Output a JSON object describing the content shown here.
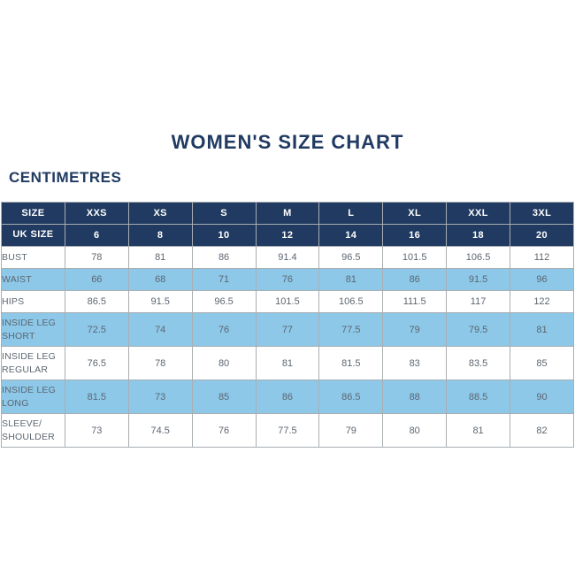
{
  "page": {
    "title": "WOMEN'S SIZE CHART",
    "unit_label": "CENTIMETRES"
  },
  "colors": {
    "navy": "#203a61",
    "light_blue": "#8dc8e9",
    "cell_text": "#5d6670",
    "border": "#a9aeb2",
    "header_text": "#ffffff"
  },
  "table": {
    "columns": [
      "SIZE",
      "XXS",
      "XS",
      "S",
      "M",
      "L",
      "XL",
      "XXL",
      "3XL"
    ],
    "rows": [
      {
        "label": "UK SIZE",
        "values": [
          "6",
          "8",
          "10",
          "12",
          "14",
          "16",
          "18",
          "20"
        ]
      },
      {
        "label": "BUST",
        "values": [
          "78",
          "81",
          "86",
          "91.4",
          "96.5",
          "101.5",
          "106.5",
          "112"
        ]
      },
      {
        "label": "WAIST",
        "values": [
          "66",
          "68",
          "71",
          "76",
          "81",
          "86",
          "91.5",
          "96"
        ]
      },
      {
        "label": "HIPS",
        "values": [
          "86.5",
          "91.5",
          "96.5",
          "101.5",
          "106.5",
          "111.5",
          "117",
          "122"
        ]
      },
      {
        "label": "INSIDE LEG SHORT",
        "values": [
          "72.5",
          "74",
          "76",
          "77",
          "77.5",
          "79",
          "79.5",
          "81"
        ]
      },
      {
        "label": "INSIDE LEG REGULAR",
        "values": [
          "76.5",
          "78",
          "80",
          "81",
          "81.5",
          "83",
          "83.5",
          "85"
        ]
      },
      {
        "label": "INSIDE LEG LONG",
        "values": [
          "81.5",
          "73",
          "85",
          "86",
          "86.5",
          "88",
          "88.5",
          "90"
        ]
      },
      {
        "label": "SLEEVE/ SHOULDER",
        "values": [
          "73",
          "74.5",
          "76",
          "77.5",
          "79",
          "80",
          "81",
          "82"
        ]
      }
    ]
  }
}
